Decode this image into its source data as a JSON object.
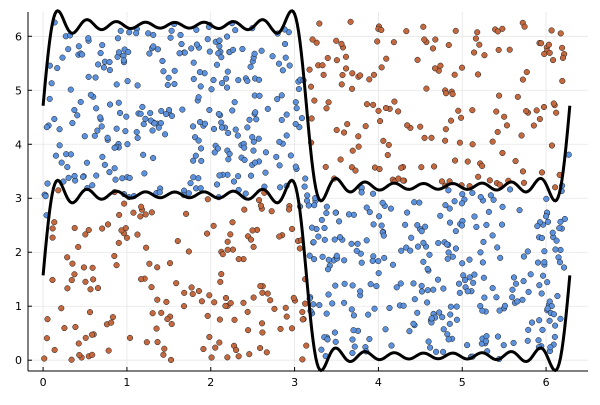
{
  "chart_data": {
    "type": "scatter",
    "title": "",
    "xlabel": "",
    "ylabel": "",
    "xlim": [
      -0.18,
      6.5
    ],
    "ylim": [
      -0.2,
      6.45
    ],
    "x_ticks": [
      0,
      1,
      2,
      3,
      4,
      5,
      6
    ],
    "y_ticks": [
      0,
      1,
      2,
      3,
      4,
      5,
      6
    ],
    "grid": true,
    "legend": "none",
    "series": [
      {
        "kind": "scatter",
        "color": "#5b91dd",
        "edge_color": "#1a1a1a",
        "regions": [
          {
            "x": [
              0,
              3.1416
            ],
            "y_from": "lower_boundary",
            "y_to": "upper_boundary",
            "count": 300
          },
          {
            "x": [
              3.1416,
              6.2832
            ],
            "y_from": "lower_boundary",
            "y_to": "upper_boundary",
            "count": 300
          }
        ]
      },
      {
        "kind": "scatter",
        "color": "#c4693f",
        "edge_color": "#1a1a1a",
        "regions": [
          {
            "x": [
              0,
              3.1416
            ],
            "y_from": 0,
            "y_to": "lower_boundary",
            "count": 170
          },
          {
            "x": [
              3.1416,
              6.2832
            ],
            "y_from": "upper_boundary",
            "y_to": 6.2832,
            "count": 170
          }
        ]
      },
      {
        "kind": "line",
        "name": "upper_boundary",
        "color": "#000000",
        "formula": "pi + fourier_square_wave(x, 9 harmonics) + pi/2",
        "samples": 400
      },
      {
        "kind": "line",
        "name": "lower_boundary",
        "color": "#000000",
        "formula": "pi/2 + fourier_square_wave(x, 9 harmonics)",
        "samples": 400
      }
    ]
  }
}
